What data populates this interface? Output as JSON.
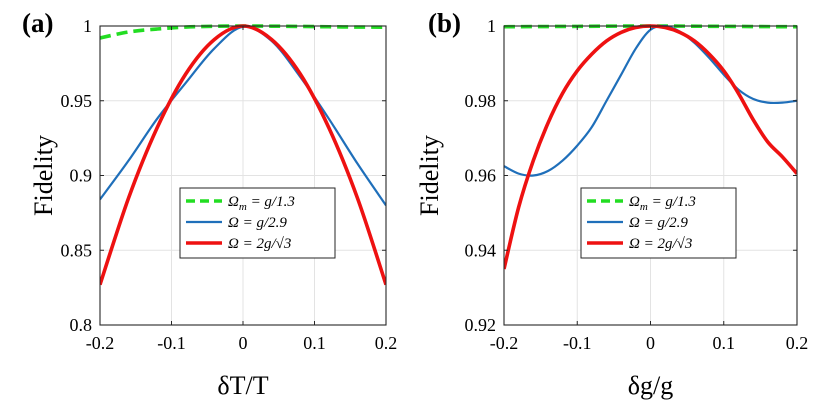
{
  "chart_data": [
    {
      "type": "line",
      "panel_label": "(a)",
      "xlabel": "δT/T",
      "ylabel": "Fidelity",
      "xlim": [
        -0.2,
        0.2
      ],
      "ylim": [
        0.8,
        1.0
      ],
      "xticks": [
        -0.2,
        -0.1,
        0,
        0.1,
        0.2
      ],
      "xtick_labels": [
        "-0.2",
        "-0.1",
        "0",
        "0.1",
        "0.2"
      ],
      "yticks": [
        0.8,
        0.85,
        0.9,
        0.95,
        1.0
      ],
      "ytick_labels": [
        "0.8",
        "0.85",
        "0.9",
        "0.95",
        "1"
      ],
      "grid": true,
      "legend_position": "bottom-center",
      "series": [
        {
          "name": "Ω_m = g/1.3",
          "legend_main": "Ω",
          "legend_sub": "m",
          "legend_rest": " = g/1.3",
          "color": "#22dd22",
          "dash": true,
          "x": [
            -0.2,
            -0.16,
            -0.12,
            -0.08,
            -0.04,
            0,
            0.04,
            0.08,
            0.12,
            0.16,
            0.2
          ],
          "y": [
            0.992,
            0.996,
            0.998,
            0.9993,
            0.9998,
            1.0,
            0.9999,
            0.9997,
            0.9995,
            0.9993,
            0.9992
          ]
        },
        {
          "name": "Ω = g/2.9",
          "legend_main": "Ω",
          "legend_sub": "",
          "legend_rest": " = g/2.9",
          "color": "#1f6fba",
          "dash": false,
          "x": [
            -0.2,
            -0.16,
            -0.12,
            -0.08,
            -0.04,
            0,
            0.04,
            0.08,
            0.12,
            0.16,
            0.2
          ],
          "y": [
            0.884,
            0.91,
            0.938,
            0.962,
            0.985,
            0.9995,
            0.99,
            0.966,
            0.938,
            0.908,
            0.88
          ]
        },
        {
          "name": "Ω = 2g/√3",
          "legend_main": "Ω",
          "legend_sub": "",
          "legend_rest": " = 2g/√3",
          "color": "#ee1111",
          "dash": false,
          "x": [
            -0.2,
            -0.16,
            -0.12,
            -0.08,
            -0.04,
            0,
            0.04,
            0.08,
            0.12,
            0.16,
            0.2
          ],
          "y": [
            0.827,
            0.885,
            0.932,
            0.968,
            0.991,
            1.0,
            0.991,
            0.968,
            0.932,
            0.885,
            0.827
          ]
        }
      ]
    },
    {
      "type": "line",
      "panel_label": "(b)",
      "xlabel": "δg/g",
      "ylabel": "Fidelity",
      "xlim": [
        -0.2,
        0.2
      ],
      "ylim": [
        0.92,
        1.0
      ],
      "xticks": [
        -0.2,
        -0.1,
        0,
        0.1,
        0.2
      ],
      "xtick_labels": [
        "-0.2",
        "-0.1",
        "0",
        "0.1",
        "0.2"
      ],
      "yticks": [
        0.92,
        0.94,
        0.96,
        0.98,
        1.0
      ],
      "ytick_labels": [
        "0.92",
        "0.94",
        "0.96",
        "0.98",
        "1"
      ],
      "grid": true,
      "legend_position": "bottom-center",
      "series": [
        {
          "name": "Ω_m = g/1.3",
          "legend_main": "Ω",
          "legend_sub": "m",
          "legend_rest": " = g/1.3",
          "color": "#22dd22",
          "dash": true,
          "x": [
            -0.2,
            -0.1,
            0,
            0.1,
            0.2
          ],
          "y": [
            0.9998,
            0.9999,
            1.0,
            0.9999,
            0.9998
          ]
        },
        {
          "name": "Ω = g/2.9",
          "legend_main": "Ω",
          "legend_sub": "",
          "legend_rest": " = g/2.9",
          "color": "#1f6fba",
          "dash": false,
          "x": [
            -0.2,
            -0.18,
            -0.16,
            -0.14,
            -0.12,
            -0.1,
            -0.08,
            -0.06,
            -0.04,
            -0.02,
            0,
            0.02,
            0.04,
            0.06,
            0.08,
            0.1,
            0.12,
            0.14,
            0.16,
            0.18,
            0.2
          ],
          "y": [
            0.9625,
            0.9605,
            0.96,
            0.9612,
            0.964,
            0.968,
            0.973,
            0.98,
            0.987,
            0.994,
            0.999,
            1.0,
            0.9985,
            0.9955,
            0.9915,
            0.987,
            0.983,
            0.9805,
            0.9795,
            0.9795,
            0.98
          ]
        },
        {
          "name": "Ω = 2g/√3",
          "legend_main": "Ω",
          "legend_sub": "",
          "legend_rest": " = 2g/√3",
          "color": "#ee1111",
          "dash": false,
          "x": [
            -0.2,
            -0.18,
            -0.16,
            -0.14,
            -0.12,
            -0.1,
            -0.08,
            -0.06,
            -0.04,
            -0.02,
            0,
            0.02,
            0.04,
            0.06,
            0.08,
            0.1,
            0.12,
            0.14,
            0.16,
            0.18,
            0.2
          ],
          "y": [
            0.935,
            0.9515,
            0.964,
            0.974,
            0.982,
            0.988,
            0.9925,
            0.996,
            0.9983,
            0.9996,
            1.0,
            0.9996,
            0.9983,
            0.996,
            0.9925,
            0.988,
            0.982,
            0.975,
            0.969,
            0.965,
            0.9605
          ]
        }
      ]
    }
  ]
}
